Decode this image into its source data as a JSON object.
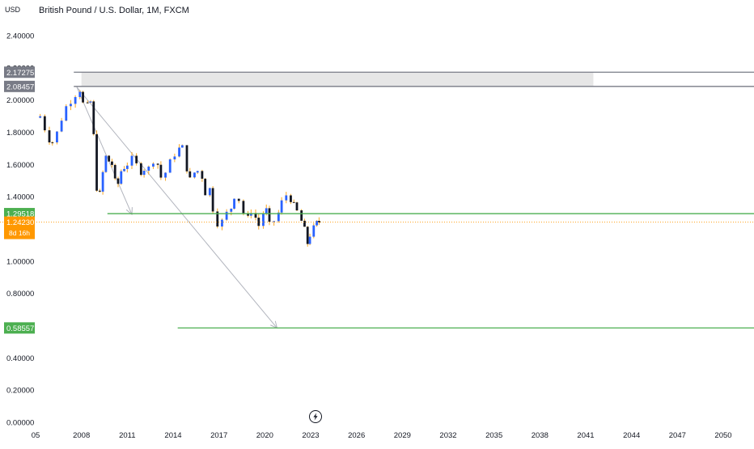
{
  "chart_data": {
    "type": "candlestick",
    "title": "British Pound / U.S. Dollar, 1M, FXCM",
    "currency": "USD",
    "ylim": [
      0.0,
      2.5
    ],
    "xlim": [
      2005.0,
      2051.4
    ],
    "yticks": [
      "2.40000",
      "2.20000",
      "2.00000",
      "1.80000",
      "1.60000",
      "1.40000",
      "1.00000",
      "0.80000",
      "0.40000",
      "0.20000",
      "0.00000"
    ],
    "ytick_values": [
      2.4,
      2.2,
      2.0,
      1.8,
      1.6,
      1.4,
      1.0,
      0.8,
      0.4,
      0.2,
      0.0
    ],
    "xticks": [
      "05",
      "2008",
      "2011",
      "2014",
      "2017",
      "2020",
      "2023",
      "2026",
      "2029",
      "2032",
      "2035",
      "2038",
      "2041",
      "2044",
      "2047",
      "2050"
    ],
    "xtick_values": [
      2005,
      2008,
      2011,
      2014,
      2017,
      2020,
      2023,
      2026,
      2029,
      2032,
      2035,
      2038,
      2041,
      2044,
      2047,
      2050
    ],
    "price_path": [
      [
        2005.0,
        1.89
      ],
      [
        2005.3,
        1.9
      ],
      [
        2005.6,
        1.82
      ],
      [
        2005.9,
        1.75
      ],
      [
        2006.1,
        1.74
      ],
      [
        2006.4,
        1.8
      ],
      [
        2006.7,
        1.88
      ],
      [
        2007.0,
        1.96
      ],
      [
        2007.3,
        1.99
      ],
      [
        2007.6,
        2.03
      ],
      [
        2007.9,
        2.06
      ],
      [
        2008.1,
        1.98
      ],
      [
        2008.4,
        1.97
      ],
      [
        2008.6,
        1.99
      ],
      [
        2008.8,
        1.78
      ],
      [
        2009.0,
        1.45
      ],
      [
        2009.2,
        1.42
      ],
      [
        2009.4,
        1.55
      ],
      [
        2009.6,
        1.65
      ],
      [
        2009.8,
        1.62
      ],
      [
        2010.0,
        1.6
      ],
      [
        2010.2,
        1.5
      ],
      [
        2010.4,
        1.48
      ],
      [
        2010.6,
        1.56
      ],
      [
        2010.8,
        1.58
      ],
      [
        2011.0,
        1.6
      ],
      [
        2011.3,
        1.64
      ],
      [
        2011.6,
        1.6
      ],
      [
        2011.9,
        1.55
      ],
      [
        2012.1,
        1.57
      ],
      [
        2012.4,
        1.58
      ],
      [
        2012.7,
        1.62
      ],
      [
        2013.0,
        1.6
      ],
      [
        2013.2,
        1.52
      ],
      [
        2013.5,
        1.55
      ],
      [
        2013.8,
        1.62
      ],
      [
        2014.1,
        1.66
      ],
      [
        2014.4,
        1.7
      ],
      [
        2014.6,
        1.71
      ],
      [
        2014.9,
        1.57
      ],
      [
        2015.1,
        1.51
      ],
      [
        2015.4,
        1.55
      ],
      [
        2015.6,
        1.56
      ],
      [
        2015.9,
        1.52
      ],
      [
        2016.1,
        1.42
      ],
      [
        2016.4,
        1.45
      ],
      [
        2016.6,
        1.32
      ],
      [
        2016.9,
        1.23
      ],
      [
        2017.2,
        1.25
      ],
      [
        2017.5,
        1.3
      ],
      [
        2017.8,
        1.33
      ],
      [
        2018.0,
        1.4
      ],
      [
        2018.3,
        1.38
      ],
      [
        2018.6,
        1.3
      ],
      [
        2018.9,
        1.27
      ],
      [
        2019.1,
        1.31
      ],
      [
        2019.4,
        1.27
      ],
      [
        2019.6,
        1.22
      ],
      [
        2019.9,
        1.3
      ],
      [
        2020.1,
        1.32
      ],
      [
        2020.3,
        1.23
      ],
      [
        2020.6,
        1.25
      ],
      [
        2020.9,
        1.3
      ],
      [
        2021.1,
        1.37
      ],
      [
        2021.4,
        1.41
      ],
      [
        2021.7,
        1.38
      ],
      [
        2021.9,
        1.35
      ],
      [
        2022.1,
        1.31
      ],
      [
        2022.4,
        1.25
      ],
      [
        2022.6,
        1.2
      ],
      [
        2022.8,
        1.11
      ],
      [
        2022.95,
        1.16
      ],
      [
        2023.2,
        1.21
      ],
      [
        2023.4,
        1.24
      ],
      [
        2023.55,
        1.2423
      ]
    ],
    "h_levels": [
      {
        "label": "2.17275",
        "value": 2.17275,
        "color": "#787b86",
        "from": 2007.5,
        "to": 2051.4
      },
      {
        "label": "2.08457",
        "value": 2.08457,
        "color": "#787b86",
        "from": 2007.5,
        "to": 2051.4
      },
      {
        "label": "1.29518",
        "value": 1.29518,
        "color": "#4caf50",
        "from": 2009.7,
        "to": 2051.4
      },
      {
        "label": "0.58557",
        "value": 0.58557,
        "color": "#4caf50",
        "from": 2014.3,
        "to": 2051.4
      }
    ],
    "hidden_tick_behind_badge": "2.20000",
    "zone": {
      "from": 2008.0,
      "to": 2041.5,
      "y1": 2.17275,
      "y2": 2.08457,
      "color": "#e6e6e6"
    },
    "arrows": [
      {
        "x1": 2007.7,
        "y1": 2.08,
        "x2": 2011.3,
        "y2": 1.29
      },
      {
        "x1": 2007.7,
        "y1": 2.08,
        "x2": 2020.8,
        "y2": 0.585
      }
    ],
    "last_price": {
      "label": "1.24230",
      "value": 1.2423,
      "countdown": "8d 16h",
      "color": "#ff9800"
    }
  }
}
